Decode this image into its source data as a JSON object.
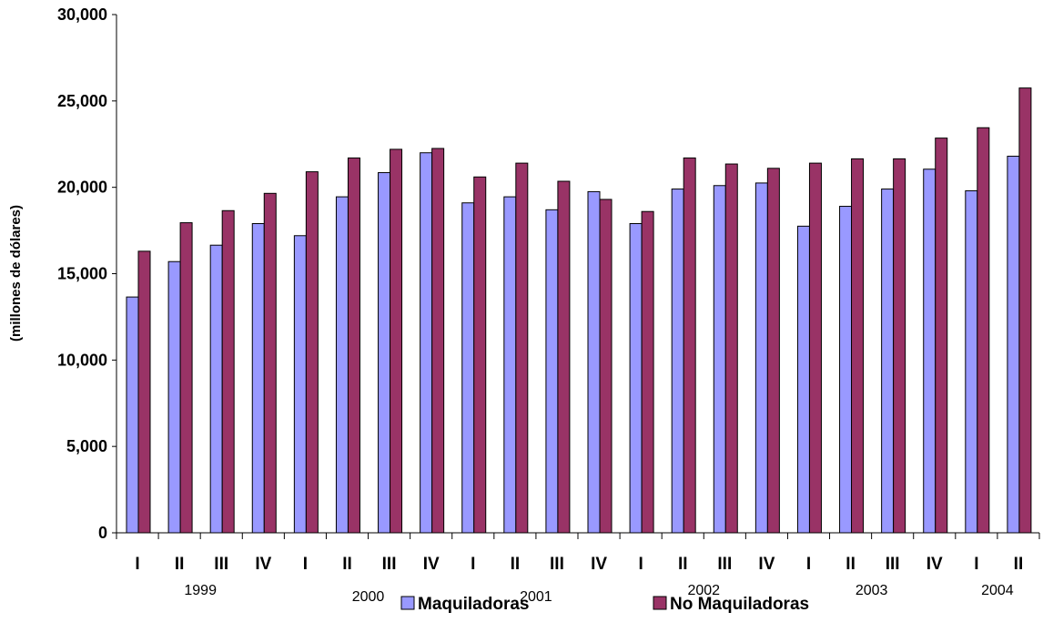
{
  "colors": {
    "Maquiladoras": "#9999ff",
    "No Maquiladoras": "#993366"
  },
  "chart_data": {
    "type": "bar",
    "title": "",
    "xlabel": "",
    "ylabel": "(millones de dólares)",
    "ylim": [
      0,
      30000
    ],
    "yticks": [
      0,
      5000,
      10000,
      15000,
      20000,
      25000,
      30000
    ],
    "ytick_labels": [
      "0",
      "5,000",
      "10,000",
      "15,000",
      "20,000",
      "25,000",
      "30,000"
    ],
    "categories": [
      "I",
      "II",
      "III",
      "IV",
      "I",
      "II",
      "III",
      "IV",
      "I",
      "II",
      "III",
      "IV",
      "I",
      "II",
      "III",
      "IV",
      "I",
      "II",
      "III",
      "IV",
      "I",
      "II"
    ],
    "years": [
      {
        "label": "1999",
        "start": 0,
        "end": 3
      },
      {
        "label": "2000",
        "start": 4,
        "end": 7
      },
      {
        "label": "2001",
        "start": 8,
        "end": 11
      },
      {
        "label": "2002",
        "start": 12,
        "end": 15
      },
      {
        "label": "2003",
        "start": 16,
        "end": 19
      },
      {
        "label": "2004",
        "start": 20,
        "end": 21
      }
    ],
    "series": [
      {
        "name": "Maquiladoras",
        "values": [
          13650,
          15700,
          16650,
          17900,
          17200,
          19450,
          20850,
          22000,
          19100,
          19450,
          18700,
          19750,
          17900,
          19900,
          20100,
          20250,
          17750,
          18900,
          19900,
          21050,
          19800,
          21800
        ]
      },
      {
        "name": "No Maquiladoras",
        "values": [
          16300,
          17950,
          18650,
          19650,
          20900,
          21700,
          22200,
          22250,
          20600,
          21400,
          20350,
          19300,
          18600,
          21700,
          21350,
          21100,
          21400,
          21650,
          21650,
          22850,
          23450,
          25750
        ]
      }
    ],
    "legend": [
      "Maquiladoras",
      "No Maquiladoras"
    ],
    "legend_position": "bottom",
    "grid": false
  }
}
